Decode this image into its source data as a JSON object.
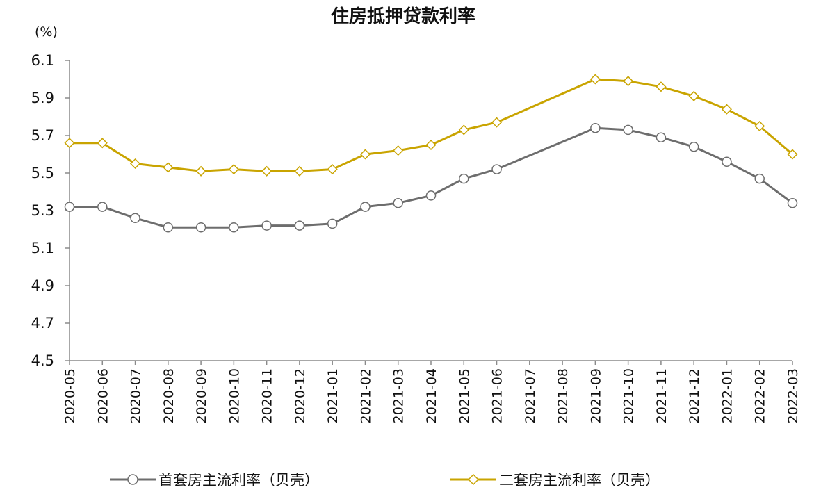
{
  "chart_data": {
    "type": "line",
    "title": "住房抵押贷款利率",
    "ylabel": "(%)",
    "xlabel": "",
    "ylim": [
      4.5,
      6.1
    ],
    "yticks": [
      "6.1",
      "5.9",
      "5.7",
      "5.5",
      "5.3",
      "5.1",
      "4.9",
      "4.7",
      "4.5"
    ],
    "yticks_values": [
      6.1,
      5.9,
      5.7,
      5.5,
      5.3,
      5.1,
      4.9,
      4.7,
      4.5
    ],
    "grid": false,
    "legend_position": "bottom",
    "categories": [
      "2020-05",
      "2020-06",
      "2020-07",
      "2020-08",
      "2020-09",
      "2020-10",
      "2020-11",
      "2020-12",
      "2021-01",
      "2021-02",
      "2021-03",
      "2021-04",
      "2021-05",
      "2021-06",
      "2021-07",
      "2021-08",
      "2021-09",
      "2021-10",
      "2021-11",
      "2021-12",
      "2022-01",
      "2022-02",
      "2022-03"
    ],
    "series": [
      {
        "name": "首套房主流利率（贝壳）",
        "color": "#6d6d6d",
        "marker": "circle",
        "values": [
          5.32,
          5.32,
          5.26,
          5.21,
          5.21,
          5.21,
          5.22,
          5.22,
          5.23,
          5.32,
          5.34,
          5.38,
          5.47,
          5.52,
          null,
          null,
          5.74,
          5.73,
          5.69,
          5.64,
          5.56,
          5.47,
          5.34
        ]
      },
      {
        "name": "二套房主流利率（贝壳）",
        "color": "#c9a400",
        "marker": "diamond",
        "values": [
          5.66,
          5.66,
          5.55,
          5.53,
          5.51,
          5.52,
          5.51,
          5.51,
          5.52,
          5.6,
          5.62,
          5.65,
          5.73,
          5.77,
          null,
          null,
          6.0,
          5.99,
          5.96,
          5.91,
          5.84,
          5.75,
          5.6
        ]
      }
    ]
  }
}
